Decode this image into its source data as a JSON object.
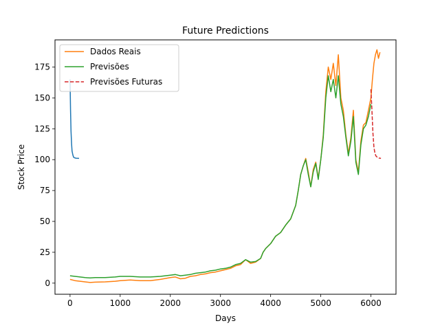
{
  "chart_data": {
    "type": "line",
    "title": "Future Predictions",
    "xlabel": "Days",
    "ylabel": "Stock Price",
    "xlim": [
      -300,
      6500
    ],
    "ylim": [
      -9,
      197
    ],
    "xticks": [
      0,
      1000,
      2000,
      3000,
      4000,
      5000,
      6000
    ],
    "yticks": [
      0,
      25,
      50,
      75,
      100,
      125,
      150,
      175
    ],
    "grid": false,
    "legend_position": "top-left",
    "series": [
      {
        "name": "",
        "color": "#1f77b4",
        "style": "solid",
        "x": [
          0,
          10,
          20,
          30,
          40,
          55,
          70,
          90,
          120,
          150,
          180
        ],
        "y": [
          165,
          140,
          123,
          113,
          107,
          104,
          102,
          101.5,
          101.2,
          101.1,
          101
        ]
      },
      {
        "name": "Dados Reais",
        "color": "#ff7f0e",
        "style": "solid",
        "x": [
          0,
          100,
          200,
          300,
          400,
          500,
          700,
          900,
          1000,
          1200,
          1400,
          1600,
          1800,
          2000,
          2100,
          2200,
          2300,
          2400,
          2500,
          2600,
          2700,
          2800,
          2900,
          3000,
          3100,
          3200,
          3300,
          3400,
          3500,
          3600,
          3700,
          3800,
          3850,
          3900,
          4000,
          4100,
          4200,
          4300,
          4400,
          4500,
          4550,
          4600,
          4650,
          4700,
          4750,
          4800,
          4850,
          4900,
          4950,
          5000,
          5050,
          5100,
          5150,
          5200,
          5250,
          5300,
          5350,
          5400,
          5450,
          5500,
          5550,
          5600,
          5650,
          5700,
          5750,
          5800,
          5850,
          5900,
          5950,
          6000,
          6030,
          6060,
          6090,
          6120,
          6150,
          6180
        ],
        "y": [
          3,
          2,
          1.5,
          1,
          0.5,
          0.8,
          1,
          1.5,
          2,
          2.5,
          2,
          2,
          3,
          4.5,
          5,
          3.5,
          4,
          5.5,
          6,
          7,
          7.5,
          8.5,
          9,
          10,
          11,
          12,
          14,
          15,
          19,
          16,
          17,
          20,
          25,
          28,
          32,
          38,
          41,
          47,
          52,
          63,
          75,
          88,
          95,
          101,
          90,
          78,
          92,
          98,
          85,
          100,
          120,
          155,
          175,
          165,
          178,
          160,
          185,
          150,
          140,
          120,
          105,
          118,
          140,
          100,
          90,
          115,
          128,
          130,
          140,
          150,
          165,
          178,
          185,
          189,
          182,
          187
        ]
      },
      {
        "name": "Previsões",
        "color": "#2ca02c",
        "style": "solid",
        "x": [
          0,
          100,
          200,
          300,
          400,
          500,
          700,
          900,
          1000,
          1200,
          1400,
          1600,
          1800,
          2000,
          2100,
          2200,
          2300,
          2400,
          2500,
          2600,
          2700,
          2800,
          2900,
          3000,
          3100,
          3200,
          3300,
          3400,
          3500,
          3600,
          3700,
          3800,
          3850,
          3900,
          4000,
          4100,
          4200,
          4300,
          4400,
          4500,
          4550,
          4600,
          4650,
          4700,
          4750,
          4800,
          4850,
          4900,
          4950,
          5000,
          5050,
          5100,
          5150,
          5200,
          5250,
          5300,
          5350,
          5400,
          5450,
          5500,
          5550,
          5600,
          5650,
          5700,
          5750,
          5800,
          5850,
          5900,
          5950,
          6000
        ],
        "y": [
          6,
          5.5,
          5,
          4.5,
          4.2,
          4.5,
          4.5,
          5,
          5.5,
          5.5,
          5,
          5,
          5.5,
          6.5,
          7,
          6,
          6.5,
          7,
          8,
          8.5,
          9,
          10,
          10.5,
          11.5,
          12,
          13,
          15,
          16,
          19,
          17,
          17.5,
          20,
          25,
          28,
          32,
          38,
          41,
          47,
          52,
          63,
          75,
          88,
          95,
          100,
          88,
          78,
          90,
          97,
          84,
          100,
          118,
          150,
          168,
          155,
          165,
          150,
          168,
          145,
          135,
          118,
          103,
          115,
          135,
          98,
          88,
          112,
          125,
          128,
          135,
          145
        ]
      },
      {
        "name": "Previsões Futuras",
        "color": "#d62728",
        "style": "dashed",
        "x": [
          6000,
          6020,
          6040,
          6060,
          6080,
          6100,
          6130,
          6160,
          6200
        ],
        "y": [
          157,
          140,
          122,
          110,
          105,
          103,
          101.8,
          101.3,
          101
        ]
      }
    ]
  }
}
